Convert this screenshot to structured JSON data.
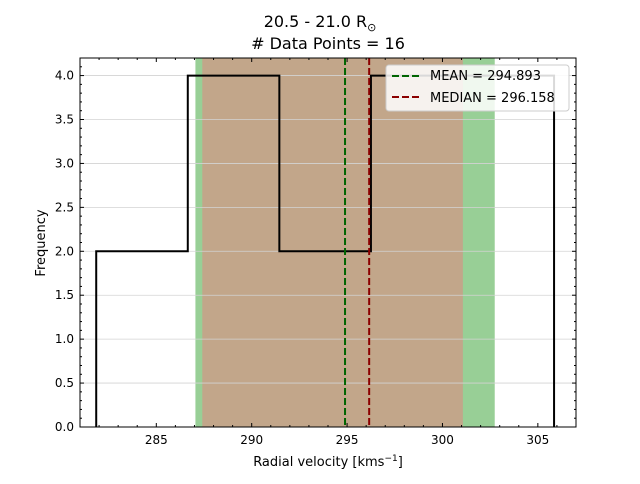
{
  "chart_data": {
    "type": "histogram",
    "title_line1": "20.5 - 21.0 R",
    "title_sun_symbol": "⊙",
    "title_line2": "# Data Points = 16",
    "xlabel": "Radial velocity [kms",
    "xlabel_exp": "−1",
    "xlabel_close": "]",
    "ylabel": "Frequency",
    "xlim": [
      281.0,
      307.0
    ],
    "ylim": [
      0,
      4.2
    ],
    "xticks": [
      285,
      290,
      295,
      300,
      305
    ],
    "xtick_labels": [
      "285",
      "290",
      "295",
      "300",
      "305"
    ],
    "yticks": [
      0.0,
      0.5,
      1.0,
      1.5,
      2.0,
      2.5,
      3.0,
      3.5,
      4.0
    ],
    "ytick_labels": [
      "0.0",
      "0.5",
      "1.0",
      "1.5",
      "2.0",
      "2.5",
      "3.0",
      "3.5",
      "4.0"
    ],
    "grid": "horizontal",
    "bin_edges": [
      281.85,
      286.65,
      291.45,
      296.25,
      301.05,
      305.85
    ],
    "counts": [
      2,
      4,
      2,
      4,
      4
    ],
    "mean": 294.893,
    "median": 296.158,
    "bands": [
      {
        "x0": 287.05,
        "x1": 302.74,
        "color": "#98cf96"
      },
      {
        "x0": 287.41,
        "x1": 301.07,
        "color": "#c2a68a"
      }
    ],
    "colors": {
      "histogram": "#000000",
      "mean": "#006400",
      "median": "#8b0000",
      "grid": "#d3d3d3"
    },
    "legend": {
      "placement": "top-right",
      "mean_label": "MEAN = 294.893",
      "median_label": "MEDIAN = 296.158"
    }
  }
}
